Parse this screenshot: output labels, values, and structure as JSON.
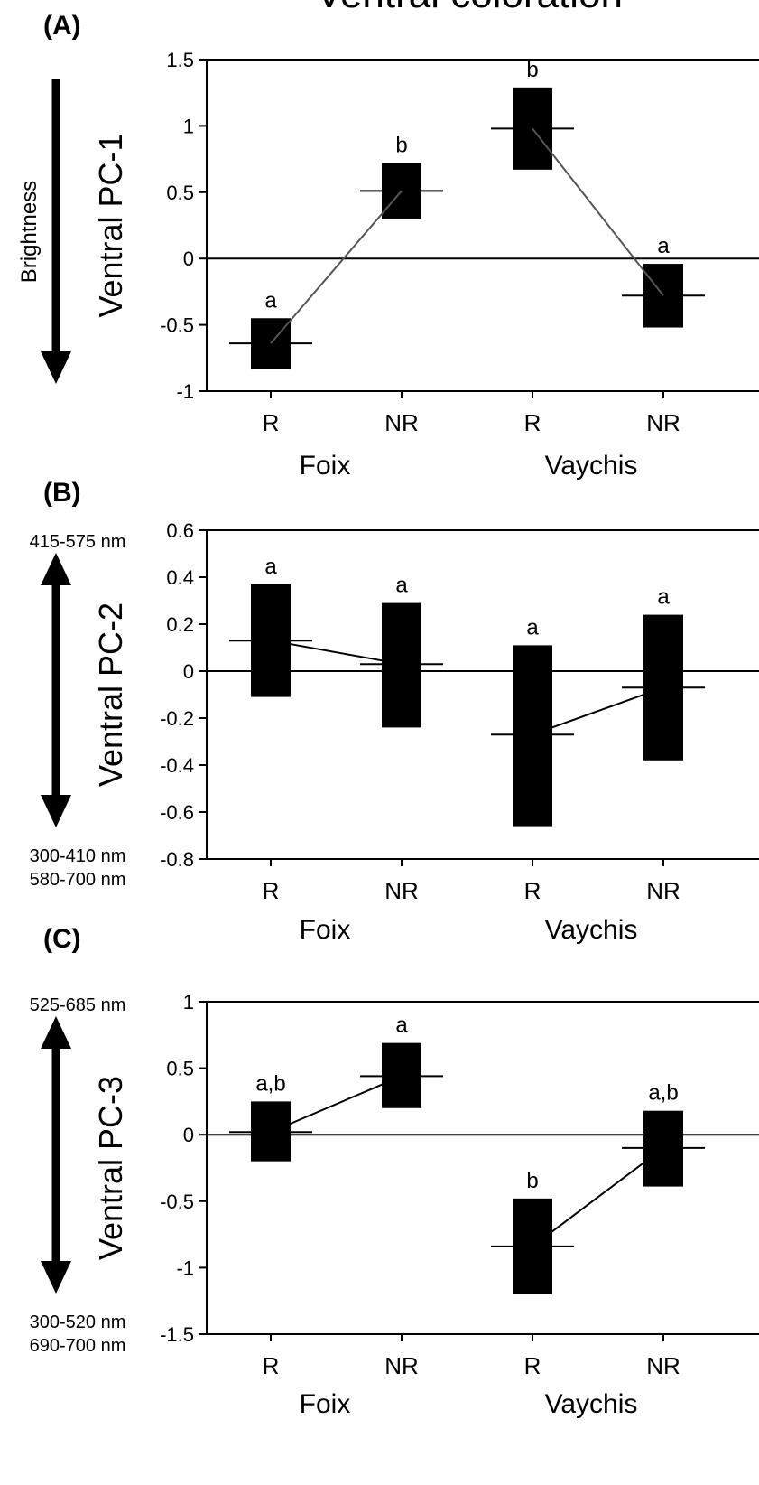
{
  "figure_title": "Ventral coloration",
  "chart_data": [
    {
      "type": "bar",
      "panel_label": "(A)",
      "ylabel": "Ventral PC-1",
      "arrow_caption": "Brightness",
      "arrow_top_label": "",
      "arrow_bottom_label": "",
      "categories": [
        "R",
        "NR",
        "R",
        "NR"
      ],
      "groups": [
        "Foix",
        "Vaychis"
      ],
      "ylim": [
        -1,
        1.5
      ],
      "yticks": [
        "1.5",
        "1",
        "0.5",
        "0",
        "-0.5",
        "-1"
      ],
      "means": [
        -0.64,
        0.51,
        0.98,
        -0.28
      ],
      "upper": [
        -0.45,
        0.72,
        1.29,
        -0.04
      ],
      "lower": [
        -0.83,
        0.3,
        0.67,
        -0.52
      ],
      "letters": [
        "a",
        "b",
        "b",
        "a"
      ]
    },
    {
      "type": "bar",
      "panel_label": "(B)",
      "ylabel": "Ventral PC-2",
      "arrow_caption": "",
      "arrow_top_label": "415-575 nm",
      "arrow_bottom_label": "300-410 nm\n580-700 nm",
      "categories": [
        "R",
        "NR",
        "R",
        "NR"
      ],
      "groups": [
        "Foix",
        "Vaychis"
      ],
      "ylim": [
        -0.8,
        0.6
      ],
      "yticks": [
        "0.6",
        "0.4",
        "0.2",
        "0",
        "-0.2",
        "-0.4",
        "-0.6",
        "-0.8"
      ],
      "means": [
        0.13,
        0.03,
        -0.27,
        -0.07
      ],
      "upper": [
        0.37,
        0.29,
        0.11,
        0.24
      ],
      "lower": [
        -0.11,
        -0.24,
        -0.66,
        -0.38
      ],
      "letters": [
        "a",
        "a",
        "a",
        "a"
      ]
    },
    {
      "type": "bar",
      "panel_label": "(C)",
      "ylabel": "Ventral PC-3",
      "arrow_caption": "",
      "arrow_top_label": "525-685 nm",
      "arrow_bottom_label": "300-520 nm\n690-700 nm",
      "categories": [
        "R",
        "NR",
        "R",
        "NR"
      ],
      "groups": [
        "Foix",
        "Vaychis"
      ],
      "ylim": [
        -1.5,
        1
      ],
      "yticks": [
        "1",
        "0.5",
        "0",
        "-0.5",
        "-1",
        "-1.5"
      ],
      "means": [
        0.02,
        0.44,
        -0.84,
        -0.1
      ],
      "upper": [
        0.25,
        0.69,
        -0.48,
        0.18
      ],
      "lower": [
        -0.2,
        0.2,
        -1.2,
        -0.39
      ],
      "letters": [
        "a,b",
        "a",
        "b",
        "a,b"
      ]
    }
  ]
}
